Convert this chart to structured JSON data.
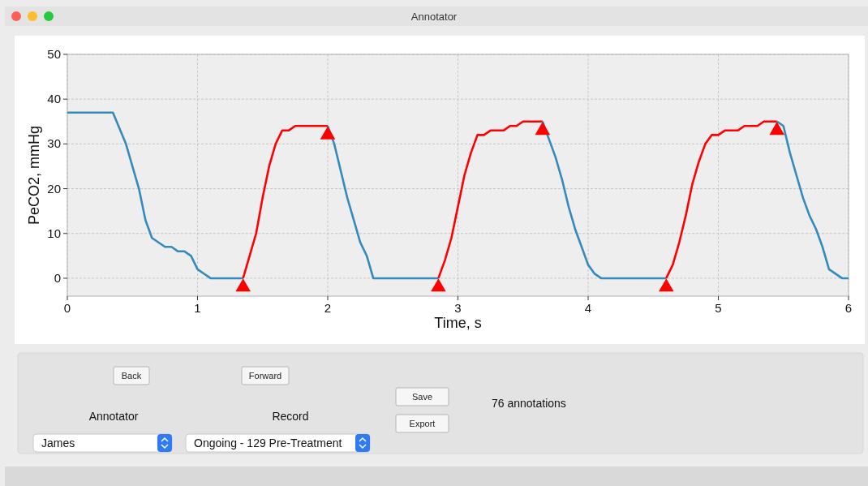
{
  "chart_data": {
    "type": "line",
    "title": "Annotator",
    "xlabel": "Time, s",
    "ylabel": "PeCO2, mmHg",
    "xlim": [
      0,
      6
    ],
    "xticks": [
      0,
      1,
      2,
      3,
      4,
      5,
      6
    ],
    "ylim": [
      -4,
      50
    ],
    "yticks": [
      0,
      10,
      20,
      30,
      40,
      50
    ],
    "grid": true,
    "line_style": "solid",
    "series": [
      {
        "color": "#348abd",
        "x": [
          0,
          0.35,
          0.45,
          0.55,
          0.6,
          0.65,
          0.75,
          0.8,
          0.85,
          0.9,
          0.95,
          1.0,
          1.1,
          1.35
        ],
        "values": [
          37,
          37,
          30,
          20,
          13,
          9,
          7,
          7,
          6,
          6,
          5,
          2,
          0,
          0
        ]
      },
      {
        "color": "#ff0000",
        "x": [
          1.35,
          1.4,
          1.45,
          1.5,
          1.55,
          1.6,
          1.65,
          1.7,
          1.75,
          2.0
        ],
        "values": [
          0,
          5,
          10,
          18,
          25,
          30,
          33,
          33,
          34,
          34
        ]
      },
      {
        "color": "#348abd",
        "x": [
          2.0,
          2.05,
          2.1,
          2.15,
          2.2,
          2.25,
          2.3,
          2.35,
          2.85
        ],
        "values": [
          34,
          30,
          24,
          18,
          13,
          8,
          5,
          0,
          0
        ]
      },
      {
        "color": "#ff0000",
        "x": [
          2.85,
          2.9,
          2.95,
          3.0,
          3.05,
          3.1,
          3.15,
          3.2,
          3.25,
          3.35,
          3.4,
          3.45,
          3.5,
          3.65
        ],
        "values": [
          0,
          4,
          9,
          16,
          23,
          28,
          32,
          32,
          33,
          33,
          34,
          34,
          35,
          35
        ]
      },
      {
        "color": "#348abd",
        "x": [
          3.65,
          3.7,
          3.75,
          3.8,
          3.85,
          3.9,
          3.95,
          4.0,
          4.05,
          4.1,
          4.6
        ],
        "values": [
          35,
          31,
          27,
          22,
          16,
          11,
          7,
          3,
          1,
          0,
          0
        ]
      },
      {
        "color": "#ff0000",
        "x": [
          4.6,
          4.65,
          4.7,
          4.75,
          4.8,
          4.85,
          4.9,
          4.95,
          5.0,
          5.05,
          5.15,
          5.2,
          5.3,
          5.35,
          5.45
        ],
        "values": [
          0,
          3,
          8,
          14,
          21,
          26,
          30,
          32,
          32,
          33,
          33,
          34,
          34,
          35,
          35
        ]
      },
      {
        "color": "#348abd",
        "x": [
          5.45,
          5.5,
          5.55,
          5.6,
          5.65,
          5.7,
          5.75,
          5.8,
          5.85,
          5.95,
          6.0
        ],
        "values": [
          35,
          34,
          28,
          23,
          18,
          14,
          11,
          7,
          2,
          0,
          0
        ]
      },
      {
        "type": "scatter",
        "marker": "triangle",
        "color": "#ff0000",
        "x": [
          1.35,
          2.0,
          2.85,
          3.65,
          4.6,
          5.45
        ],
        "values": [
          -2,
          32,
          -2,
          33,
          -2,
          33
        ]
      }
    ],
    "annotations": [
      "Back",
      "Forward",
      "Save",
      "Export",
      "Annotator",
      "Record",
      "James",
      "Ongoing - 129 Pre-Treatment",
      "76 annotations"
    ]
  }
}
